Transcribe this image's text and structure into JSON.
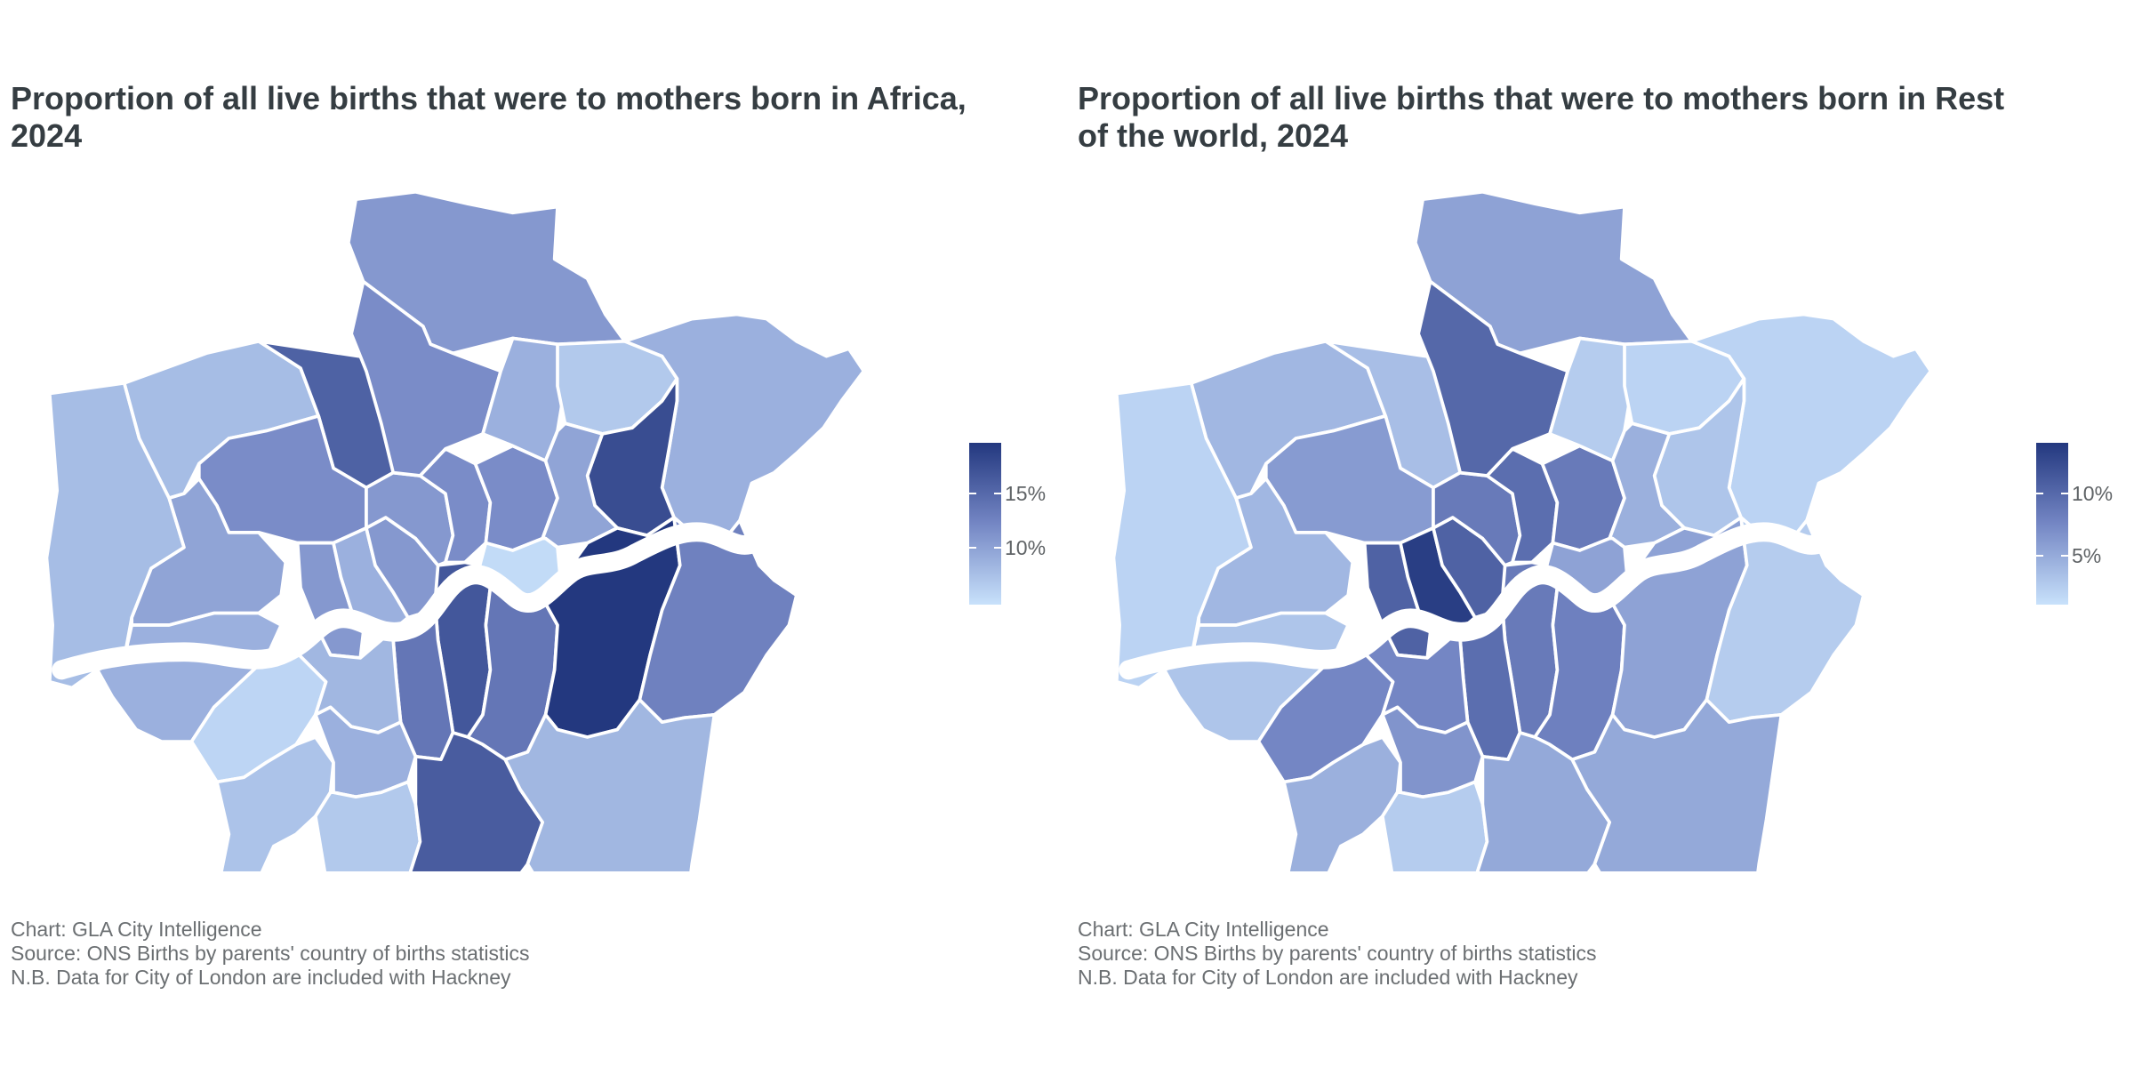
{
  "panels": [
    {
      "title": "Proportion of all live births that were to mothers born in Africa, 2024",
      "legend": {
        "ticks": [
          {
            "label": "15%",
            "value": 15
          },
          {
            "label": "10%",
            "value": 10
          }
        ],
        "min_value": 5,
        "max_value": 20,
        "color_low": "#c8e1fb",
        "color_high": "#23387f"
      },
      "caption": [
        "Chart: GLA City Intelligence",
        "Source: ONS Births by parents' country of births statistics",
        "N.B. Data for City of London are included with Hackney"
      ],
      "boroughs": {
        "Barnet": 16,
        "Enfield": 11,
        "Harrow": 8,
        "Brent": 12,
        "Haringey": 12,
        "Waltham Forest": 9,
        "Redbridge": 7,
        "Havering": 9,
        "Barking and Dagenham": 18,
        "Hillingdon": 8,
        "Ealing": 10,
        "Camden": 11,
        "Islington": 12,
        "Hackney": 12,
        "Newham": 10,
        "Tower Hamlets": 5.5,
        "Westminster": 11,
        "Kensington and Chelsea": 9,
        "Hammersmith and Fulham": 11,
        "Hounslow": 9,
        "Richmond upon Thames": 6,
        "Wandsworth": 8.5,
        "Lambeth": 14,
        "Southwark": 17,
        "Lewisham": 14,
        "Greenwich": 21,
        "Bexley": 13,
        "Kingston upon Thames": 7.5,
        "Merton": 9,
        "Croydon": 16.5,
        "Bromley": 8.5,
        "Sutton": 7
      }
    },
    {
      "title": "Proportion of all live births that were to mothers born in Rest of the world, 2024",
      "legend": {
        "ticks": [
          {
            "label": "10%",
            "value": 10
          },
          {
            "label": "5%",
            "value": 5
          }
        ],
        "min_value": 1.5,
        "max_value": 14.5,
        "color_low": "#c8e1fb",
        "color_high": "#23387f"
      },
      "caption": [
        "Chart: GLA City Intelligence",
        "Source: ONS Births by parents' country of births statistics",
        "N.B. Data for City of London are included with Hackney"
      ],
      "boroughs": {
        "Barnet": 4,
        "Enfield": 6,
        "Harrow": 4.5,
        "Brent": 6.5,
        "Haringey": 10.5,
        "Waltham Forest": 3,
        "Redbridge": 2.5,
        "Havering": 2.5,
        "Barking and Dagenham": 3.5,
        "Hillingdon": 2.5,
        "Ealing": 4.5,
        "Camden": 9,
        "Islington": 10,
        "Hackney": 9,
        "Newham": 5,
        "Tower Hamlets": 6,
        "Westminster": 11,
        "Kensington and Chelsea": 14,
        "Hammersmith and Fulham": 11,
        "Hounslow": 3.5,
        "Richmond upon Thames": 8,
        "Wandsworth": 8,
        "Lambeth": 10,
        "Southwark": 9,
        "Lewisham": 8.5,
        "Greenwich": 6,
        "Bexley": 3,
        "Kingston upon Thames": 5,
        "Merton": 7,
        "Croydon": 5.5,
        "Bromley": 5.5,
        "Sutton": 3
      }
    }
  ]
}
